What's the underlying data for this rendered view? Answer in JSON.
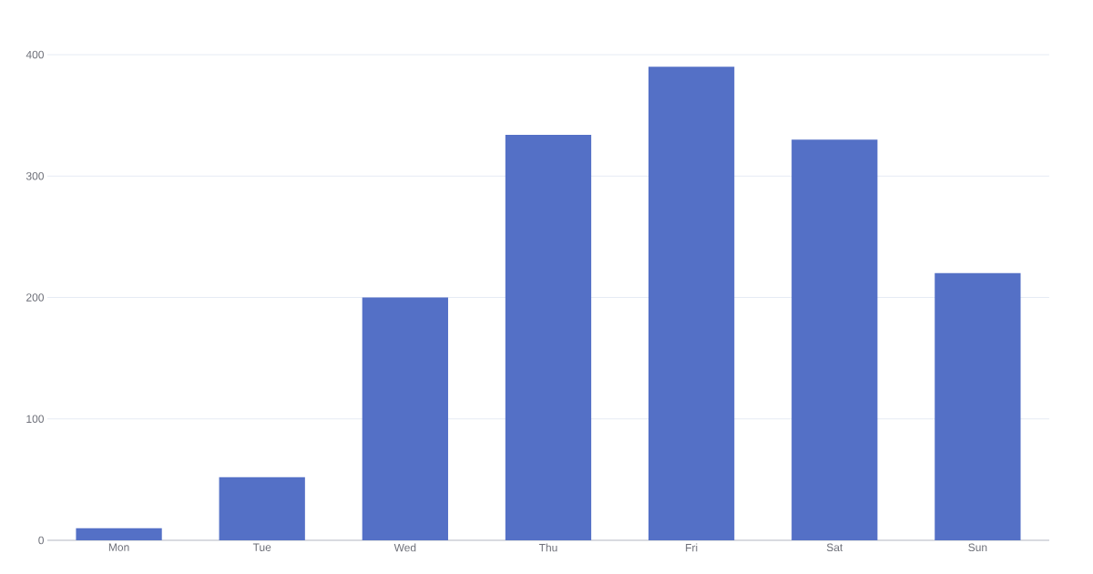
{
  "chart_data": {
    "type": "bar",
    "categories": [
      "Mon",
      "Tue",
      "Wed",
      "Thu",
      "Fri",
      "Sat",
      "Sun"
    ],
    "values": [
      10,
      52,
      200,
      334,
      390,
      330,
      220
    ],
    "color": "#5470c6",
    "ylim": [
      0,
      400
    ],
    "yticks": [
      0,
      100,
      200,
      300,
      400
    ],
    "grid": "y"
  }
}
